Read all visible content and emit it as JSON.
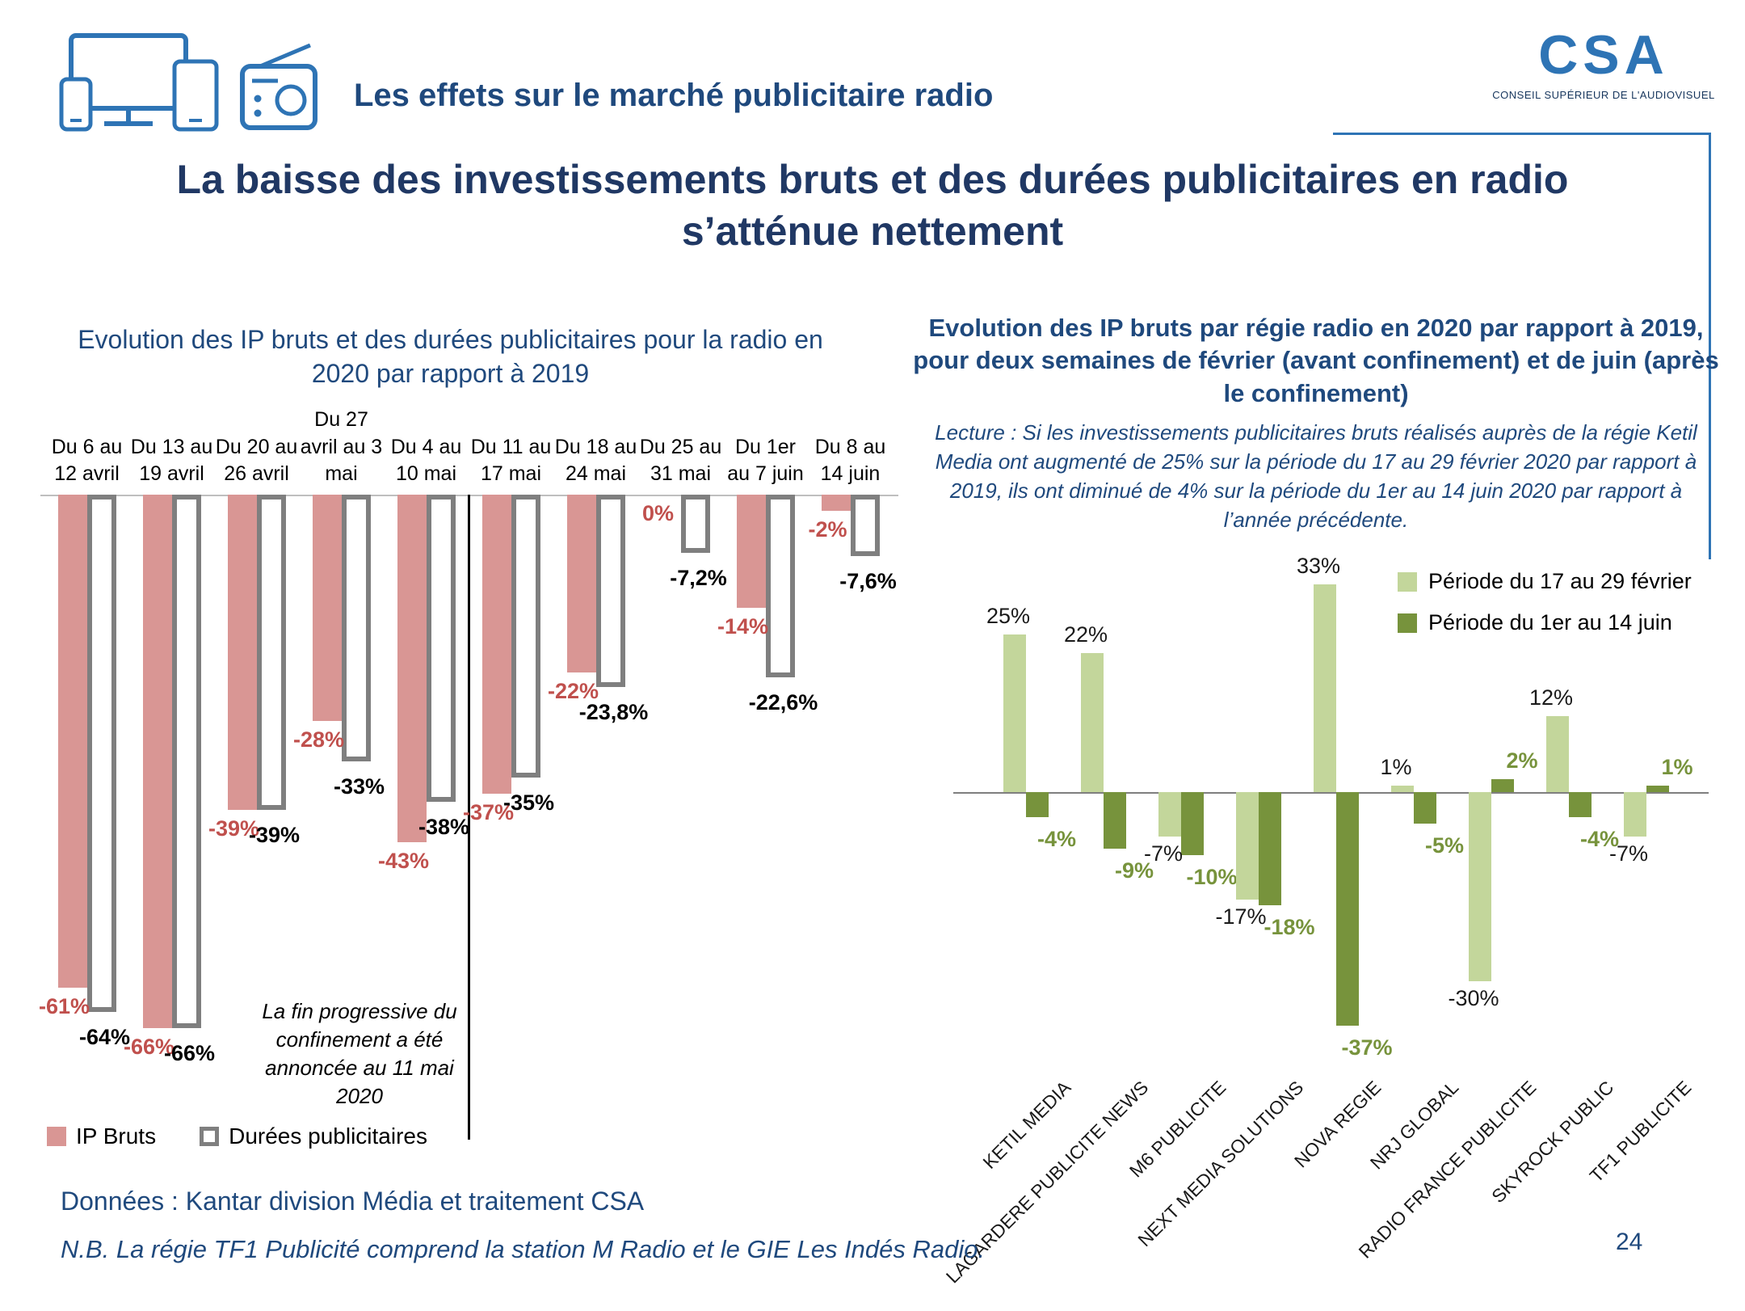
{
  "page": {
    "section_title": "Les effets sur le marché publicitaire radio",
    "main_title": "La baisse des investissements bruts et des durées publicitaires en radio s’atténue nettement",
    "page_number": "24"
  },
  "logo": {
    "text": "CSA",
    "caption": "CONSEIL SUPÉRIEUR DE L'AUDIOVISUEL"
  },
  "right_chart": {
    "lecture": "Lecture : Si les investissements publicitaires bruts réalisés auprès de la régie Ketil Media ont augmenté de 25% sur la période du 17 au 29 février 2020 par rapport à 2019, ils ont diminué de 4% sur la période du 1er au 14 juin 2020 par rapport à l’année précédente."
  },
  "footer": {
    "source": "Données : Kantar division Média et traitement CSA",
    "note": "N.B. La régie TF1 Publicité comprend la station M Radio et le GIE Les Indés Radio."
  },
  "colors": {
    "accent_blue": "#1F497D",
    "title_navy": "#203864",
    "line_blue": "#2E74B5",
    "pink": "#D99694",
    "pink_label": "#C0504D",
    "gray_border": "#7F7F7F",
    "light_green": "#C3D69B",
    "dark_green": "#77933C"
  },
  "chart_data": [
    {
      "type": "bar",
      "title": "Evolution des IP bruts et des durées publicitaires pour la radio en 2020 par rapport à 2019",
      "categories": [
        "Du 6 au 12 avril",
        "Du 13 au 19 avril",
        "Du 20 au 26 avril",
        "Du 27 avril au 3 mai",
        "Du 4 au 10 mai",
        "Du 11 au 17 mai",
        "Du 18 au 24 mai",
        "Du 25 au 31 mai",
        "Du 1er au 7 juin",
        "Du 8 au 14 juin"
      ],
      "categories_display": [
        "Du 6 au\n12 avril",
        "Du 13 au\n19 avril",
        "Du 20 au\n26 avril",
        "Du 27\navril au 3\nmai",
        "Du 4 au\n10 mai",
        "Du 11 au\n17 mai",
        "Du 18 au\n24 mai",
        "Du 25 au\n31 mai",
        "Du 1er\nau 7 juin",
        "Du 8 au\n14 juin"
      ],
      "series": [
        {
          "name": "IP Bruts",
          "values": [
            -61,
            -66,
            -39,
            -28,
            -43,
            -37,
            -22,
            0,
            -14,
            -2
          ],
          "labels": [
            "-61%",
            "-66%",
            "-39%",
            "-28%",
            "-43%",
            "-37%",
            "-22%",
            "0%",
            "-14%",
            "-2%"
          ]
        },
        {
          "name": "Durées publicitaires",
          "values": [
            -64,
            -66,
            -39,
            -33,
            -38,
            -35,
            -23.8,
            -7.2,
            -22.6,
            -7.6
          ],
          "labels": [
            "-64%",
            "-66%",
            "-39%",
            "-33%",
            "-38%",
            "-35%",
            "-23,8%",
            "-7,2%",
            "-22,6%",
            "-7,6%"
          ]
        }
      ],
      "unit": "%",
      "ylim": [
        -70,
        0
      ],
      "grid": false,
      "legend_position": "bottom-left",
      "annotation": "La fin progressive du confinement a été annoncée au 11 mai 2020",
      "separator_after_category_index": 4
    },
    {
      "type": "bar",
      "title": "Evolution des IP bruts par régie radio en 2020 par rapport à 2019, pour deux semaines de février (avant confinement) et de juin (après le confinement)",
      "categories": [
        "KETIL MEDIA",
        "LAGARDERE PUBLICITE NEWS",
        "M6 PUBLICITE",
        "NEXT MEDIA SOLUTIONS",
        "NOVA REGIE",
        "NRJ GLOBAL",
        "RADIO FRANCE PUBLICITE",
        "SKYROCK PUBLIC",
        "TF1 PUBLICITE"
      ],
      "series": [
        {
          "name": "Période du 17 au 29 février",
          "values": [
            25,
            22,
            -7,
            -17,
            33,
            1,
            -30,
            12,
            -7
          ],
          "labels": [
            "25%",
            "22%",
            "-7%",
            "-17%",
            "33%",
            "1%",
            "-30%",
            "12%",
            "-7%"
          ]
        },
        {
          "name": "Période du 1er au 14 juin",
          "values": [
            -4,
            -9,
            -10,
            -18,
            -37,
            -5,
            2,
            -4,
            1
          ],
          "labels": [
            "-4%",
            "-9%",
            "-10%",
            "-18%",
            "-37%",
            "-5%",
            "2%",
            "-4%",
            "1%"
          ]
        }
      ],
      "unit": "%",
      "ylim": [
        -40,
        35
      ],
      "grid": false,
      "legend_position": "top-right"
    }
  ]
}
